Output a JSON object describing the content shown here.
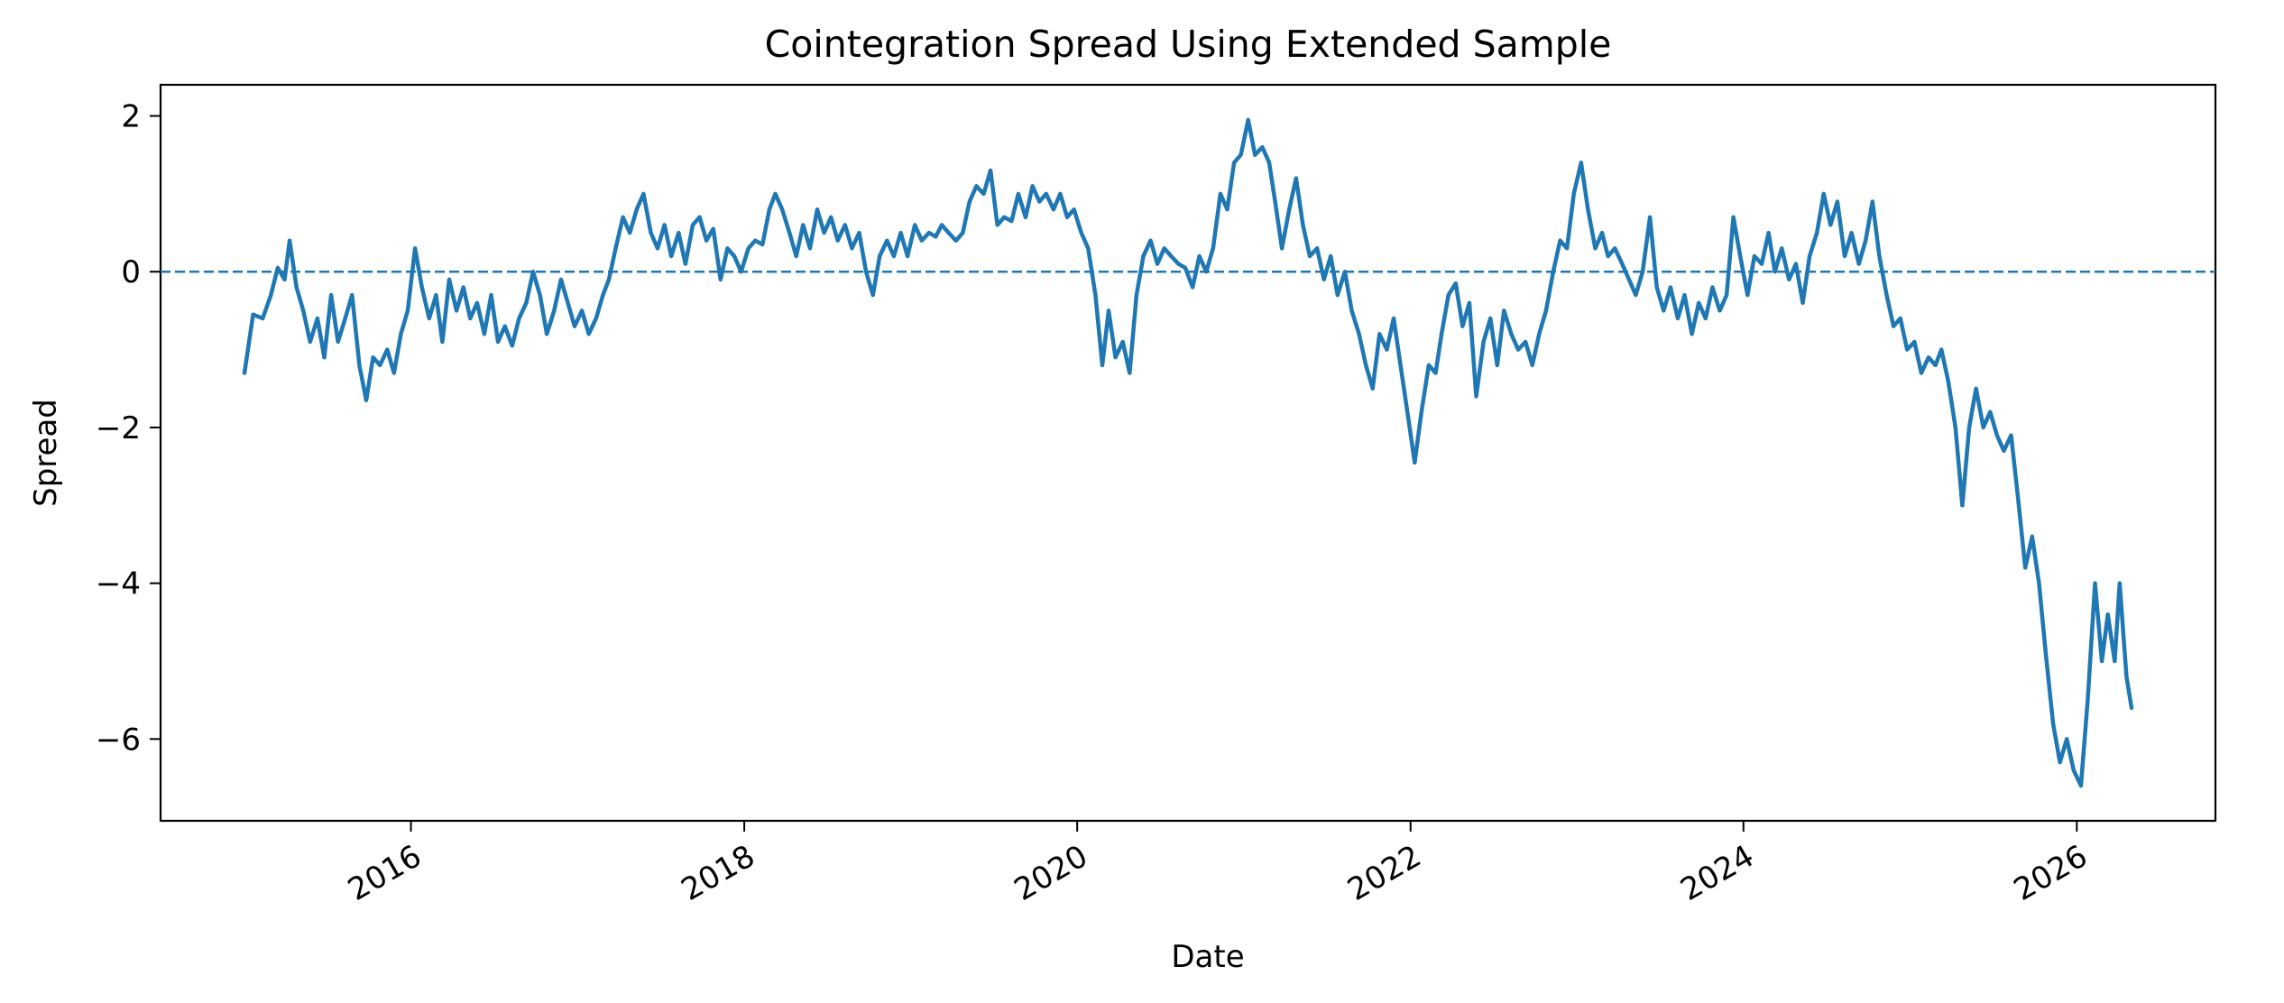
{
  "chart_data": {
    "type": "line",
    "title": "Cointegration Spread Using Extended Sample",
    "xlabel": "Date",
    "ylabel": "Spread",
    "xlim": [
      "2014-07-01",
      "2026-11-01"
    ],
    "ylim": [
      -7.05,
      2.4
    ],
    "xticks": [
      {
        "date": "2016-01-01",
        "label": "2016"
      },
      {
        "date": "2018-01-01",
        "label": "2018"
      },
      {
        "date": "2020-01-01",
        "label": "2020"
      },
      {
        "date": "2022-01-01",
        "label": "2022"
      },
      {
        "date": "2024-01-01",
        "label": "2024"
      },
      {
        "date": "2026-01-01",
        "label": "2026"
      }
    ],
    "yticks": [
      {
        "value": 2,
        "label": "2"
      },
      {
        "value": 0,
        "label": "0"
      },
      {
        "value": -2,
        "label": "−2"
      },
      {
        "value": -4,
        "label": "−4"
      },
      {
        "value": -6,
        "label": "−6"
      }
    ],
    "grid": false,
    "reference_line": {
      "y": 0,
      "style": "dashed",
      "color": "#1f77b4"
    },
    "series": [
      {
        "color": "#1f77b4",
        "points": [
          [
            "2015-01-01",
            -1.3
          ],
          [
            "2015-01-20",
            -0.55
          ],
          [
            "2015-02-10",
            -0.6
          ],
          [
            "2015-02-28",
            -0.3
          ],
          [
            "2015-03-15",
            0.05
          ],
          [
            "2015-03-30",
            -0.1
          ],
          [
            "2015-04-10",
            0.4
          ],
          [
            "2015-04-25",
            -0.2
          ],
          [
            "2015-05-10",
            -0.5
          ],
          [
            "2015-05-25",
            -0.9
          ],
          [
            "2015-06-10",
            -0.6
          ],
          [
            "2015-06-25",
            -1.1
          ],
          [
            "2015-07-10",
            -0.3
          ],
          [
            "2015-07-25",
            -0.9
          ],
          [
            "2015-08-10",
            -0.6
          ],
          [
            "2015-08-25",
            -0.3
          ],
          [
            "2015-09-10",
            -1.2
          ],
          [
            "2015-09-25",
            -1.65
          ],
          [
            "2015-10-10",
            -1.1
          ],
          [
            "2015-10-25",
            -1.2
          ],
          [
            "2015-11-10",
            -1.0
          ],
          [
            "2015-11-25",
            -1.3
          ],
          [
            "2015-12-10",
            -0.8
          ],
          [
            "2015-12-25",
            -0.5
          ],
          [
            "2016-01-10",
            0.3
          ],
          [
            "2016-01-25",
            -0.2
          ],
          [
            "2016-02-10",
            -0.6
          ],
          [
            "2016-02-25",
            -0.3
          ],
          [
            "2016-03-10",
            -0.9
          ],
          [
            "2016-03-25",
            -0.1
          ],
          [
            "2016-04-10",
            -0.5
          ],
          [
            "2016-04-25",
            -0.2
          ],
          [
            "2016-05-10",
            -0.6
          ],
          [
            "2016-05-25",
            -0.4
          ],
          [
            "2016-06-10",
            -0.8
          ],
          [
            "2016-06-25",
            -0.3
          ],
          [
            "2016-07-10",
            -0.9
          ],
          [
            "2016-07-25",
            -0.7
          ],
          [
            "2016-08-10",
            -0.95
          ],
          [
            "2016-08-25",
            -0.6
          ],
          [
            "2016-09-10",
            -0.4
          ],
          [
            "2016-09-25",
            0.0
          ],
          [
            "2016-10-10",
            -0.3
          ],
          [
            "2016-10-25",
            -0.8
          ],
          [
            "2016-11-10",
            -0.5
          ],
          [
            "2016-11-25",
            -0.1
          ],
          [
            "2016-12-10",
            -0.4
          ],
          [
            "2016-12-25",
            -0.7
          ],
          [
            "2017-01-10",
            -0.5
          ],
          [
            "2017-01-25",
            -0.8
          ],
          [
            "2017-02-10",
            -0.6
          ],
          [
            "2017-02-25",
            -0.3
          ],
          [
            "2017-03-10",
            -0.1
          ],
          [
            "2017-03-25",
            0.3
          ],
          [
            "2017-04-10",
            0.7
          ],
          [
            "2017-04-25",
            0.5
          ],
          [
            "2017-05-10",
            0.8
          ],
          [
            "2017-05-25",
            1.0
          ],
          [
            "2017-06-10",
            0.5
          ],
          [
            "2017-06-25",
            0.3
          ],
          [
            "2017-07-10",
            0.6
          ],
          [
            "2017-07-25",
            0.2
          ],
          [
            "2017-08-10",
            0.5
          ],
          [
            "2017-08-25",
            0.1
          ],
          [
            "2017-09-10",
            0.6
          ],
          [
            "2017-09-25",
            0.7
          ],
          [
            "2017-10-10",
            0.4
          ],
          [
            "2017-10-25",
            0.55
          ],
          [
            "2017-11-10",
            -0.1
          ],
          [
            "2017-11-25",
            0.3
          ],
          [
            "2017-12-10",
            0.2
          ],
          [
            "2017-12-25",
            0.0
          ],
          [
            "2018-01-10",
            0.3
          ],
          [
            "2018-01-25",
            0.4
          ],
          [
            "2018-02-10",
            0.35
          ],
          [
            "2018-02-25",
            0.8
          ],
          [
            "2018-03-10",
            1.0
          ],
          [
            "2018-03-25",
            0.8
          ],
          [
            "2018-04-10",
            0.5
          ],
          [
            "2018-04-25",
            0.2
          ],
          [
            "2018-05-10",
            0.6
          ],
          [
            "2018-05-25",
            0.3
          ],
          [
            "2018-06-10",
            0.8
          ],
          [
            "2018-06-25",
            0.5
          ],
          [
            "2018-07-10",
            0.7
          ],
          [
            "2018-07-25",
            0.4
          ],
          [
            "2018-08-10",
            0.6
          ],
          [
            "2018-08-25",
            0.3
          ],
          [
            "2018-09-10",
            0.5
          ],
          [
            "2018-09-25",
            0.0
          ],
          [
            "2018-10-10",
            -0.3
          ],
          [
            "2018-10-25",
            0.2
          ],
          [
            "2018-11-10",
            0.4
          ],
          [
            "2018-11-25",
            0.2
          ],
          [
            "2018-12-10",
            0.5
          ],
          [
            "2018-12-25",
            0.2
          ],
          [
            "2019-01-10",
            0.6
          ],
          [
            "2019-01-25",
            0.4
          ],
          [
            "2019-02-10",
            0.5
          ],
          [
            "2019-02-25",
            0.45
          ],
          [
            "2019-03-10",
            0.6
          ],
          [
            "2019-03-25",
            0.5
          ],
          [
            "2019-04-10",
            0.4
          ],
          [
            "2019-04-25",
            0.5
          ],
          [
            "2019-05-10",
            0.9
          ],
          [
            "2019-05-25",
            1.1
          ],
          [
            "2019-06-10",
            1.0
          ],
          [
            "2019-06-25",
            1.3
          ],
          [
            "2019-07-10",
            0.6
          ],
          [
            "2019-07-25",
            0.7
          ],
          [
            "2019-08-10",
            0.65
          ],
          [
            "2019-08-25",
            1.0
          ],
          [
            "2019-09-10",
            0.7
          ],
          [
            "2019-09-25",
            1.1
          ],
          [
            "2019-10-10",
            0.9
          ],
          [
            "2019-10-25",
            1.0
          ],
          [
            "2019-11-10",
            0.8
          ],
          [
            "2019-11-25",
            1.0
          ],
          [
            "2019-12-10",
            0.7
          ],
          [
            "2019-12-25",
            0.8
          ],
          [
            "2020-01-10",
            0.5
          ],
          [
            "2020-01-25",
            0.3
          ],
          [
            "2020-02-10",
            -0.3
          ],
          [
            "2020-02-25",
            -1.2
          ],
          [
            "2020-03-10",
            -0.5
          ],
          [
            "2020-03-25",
            -1.1
          ],
          [
            "2020-04-10",
            -0.9
          ],
          [
            "2020-04-25",
            -1.3
          ],
          [
            "2020-05-10",
            -0.3
          ],
          [
            "2020-05-25",
            0.2
          ],
          [
            "2020-06-10",
            0.4
          ],
          [
            "2020-06-25",
            0.1
          ],
          [
            "2020-07-10",
            0.3
          ],
          [
            "2020-07-25",
            0.2
          ],
          [
            "2020-08-10",
            0.1
          ],
          [
            "2020-08-25",
            0.05
          ],
          [
            "2020-09-10",
            -0.2
          ],
          [
            "2020-09-25",
            0.2
          ],
          [
            "2020-10-10",
            0.0
          ],
          [
            "2020-10-25",
            0.3
          ],
          [
            "2020-11-10",
            1.0
          ],
          [
            "2020-11-25",
            0.8
          ],
          [
            "2020-12-10",
            1.4
          ],
          [
            "2020-12-25",
            1.5
          ],
          [
            "2021-01-10",
            1.95
          ],
          [
            "2021-01-25",
            1.5
          ],
          [
            "2021-02-10",
            1.6
          ],
          [
            "2021-02-25",
            1.4
          ],
          [
            "2021-03-10",
            0.9
          ],
          [
            "2021-03-25",
            0.3
          ],
          [
            "2021-04-10",
            0.8
          ],
          [
            "2021-04-25",
            1.2
          ],
          [
            "2021-05-10",
            0.6
          ],
          [
            "2021-05-25",
            0.2
          ],
          [
            "2021-06-10",
            0.3
          ],
          [
            "2021-06-25",
            -0.1
          ],
          [
            "2021-07-10",
            0.2
          ],
          [
            "2021-07-25",
            -0.3
          ],
          [
            "2021-08-10",
            0.0
          ],
          [
            "2021-08-25",
            -0.5
          ],
          [
            "2021-09-10",
            -0.8
          ],
          [
            "2021-09-25",
            -1.2
          ],
          [
            "2021-10-10",
            -1.5
          ],
          [
            "2021-10-25",
            -0.8
          ],
          [
            "2021-11-10",
            -1.0
          ],
          [
            "2021-11-25",
            -0.6
          ],
          [
            "2021-12-10",
            -1.2
          ],
          [
            "2021-12-25",
            -1.8
          ],
          [
            "2022-01-10",
            -2.45
          ],
          [
            "2022-01-25",
            -1.8
          ],
          [
            "2022-02-10",
            -1.2
          ],
          [
            "2022-02-25",
            -1.3
          ],
          [
            "2022-03-10",
            -0.8
          ],
          [
            "2022-03-25",
            -0.3
          ],
          [
            "2022-04-10",
            -0.15
          ],
          [
            "2022-04-25",
            -0.7
          ],
          [
            "2022-05-10",
            -0.4
          ],
          [
            "2022-05-25",
            -1.6
          ],
          [
            "2022-06-10",
            -0.9
          ],
          [
            "2022-06-25",
            -0.6
          ],
          [
            "2022-07-10",
            -1.2
          ],
          [
            "2022-07-25",
            -0.5
          ],
          [
            "2022-08-10",
            -0.8
          ],
          [
            "2022-08-25",
            -1.0
          ],
          [
            "2022-09-10",
            -0.9
          ],
          [
            "2022-09-25",
            -1.2
          ],
          [
            "2022-10-10",
            -0.8
          ],
          [
            "2022-10-25",
            -0.5
          ],
          [
            "2022-11-10",
            0.0
          ],
          [
            "2022-11-25",
            0.4
          ],
          [
            "2022-12-10",
            0.3
          ],
          [
            "2022-12-25",
            1.0
          ],
          [
            "2023-01-10",
            1.4
          ],
          [
            "2023-01-25",
            0.8
          ],
          [
            "2023-02-10",
            0.3
          ],
          [
            "2023-02-25",
            0.5
          ],
          [
            "2023-03-10",
            0.2
          ],
          [
            "2023-03-25",
            0.3
          ],
          [
            "2023-04-10",
            0.1
          ],
          [
            "2023-04-25",
            -0.1
          ],
          [
            "2023-05-10",
            -0.3
          ],
          [
            "2023-05-25",
            0.0
          ],
          [
            "2023-06-10",
            0.7
          ],
          [
            "2023-06-25",
            -0.2
          ],
          [
            "2023-07-10",
            -0.5
          ],
          [
            "2023-07-25",
            -0.2
          ],
          [
            "2023-08-10",
            -0.6
          ],
          [
            "2023-08-25",
            -0.3
          ],
          [
            "2023-09-10",
            -0.8
          ],
          [
            "2023-09-25",
            -0.4
          ],
          [
            "2023-10-10",
            -0.6
          ],
          [
            "2023-10-25",
            -0.2
          ],
          [
            "2023-11-10",
            -0.5
          ],
          [
            "2023-11-25",
            -0.3
          ],
          [
            "2023-12-10",
            0.7
          ],
          [
            "2023-12-25",
            0.2
          ],
          [
            "2024-01-10",
            -0.3
          ],
          [
            "2024-01-25",
            0.2
          ],
          [
            "2024-02-10",
            0.1
          ],
          [
            "2024-02-25",
            0.5
          ],
          [
            "2024-03-10",
            0.0
          ],
          [
            "2024-03-25",
            0.3
          ],
          [
            "2024-04-10",
            -0.1
          ],
          [
            "2024-04-25",
            0.1
          ],
          [
            "2024-05-10",
            -0.4
          ],
          [
            "2024-05-25",
            0.2
          ],
          [
            "2024-06-10",
            0.5
          ],
          [
            "2024-06-25",
            1.0
          ],
          [
            "2024-07-10",
            0.6
          ],
          [
            "2024-07-25",
            0.9
          ],
          [
            "2024-08-10",
            0.2
          ],
          [
            "2024-08-25",
            0.5
          ],
          [
            "2024-09-10",
            0.1
          ],
          [
            "2024-09-25",
            0.4
          ],
          [
            "2024-10-10",
            0.9
          ],
          [
            "2024-10-25",
            0.2
          ],
          [
            "2024-11-10",
            -0.3
          ],
          [
            "2024-11-25",
            -0.7
          ],
          [
            "2024-12-10",
            -0.6
          ],
          [
            "2024-12-25",
            -1.0
          ],
          [
            "2025-01-10",
            -0.9
          ],
          [
            "2025-01-25",
            -1.3
          ],
          [
            "2025-02-10",
            -1.1
          ],
          [
            "2025-02-25",
            -1.2
          ],
          [
            "2025-03-10",
            -1.0
          ],
          [
            "2025-03-25",
            -1.4
          ],
          [
            "2025-04-10",
            -2.0
          ],
          [
            "2025-04-25",
            -3.0
          ],
          [
            "2025-05-10",
            -2.0
          ],
          [
            "2025-05-25",
            -1.5
          ],
          [
            "2025-06-10",
            -2.0
          ],
          [
            "2025-06-25",
            -1.8
          ],
          [
            "2025-07-10",
            -2.1
          ],
          [
            "2025-07-25",
            -2.3
          ],
          [
            "2025-08-10",
            -2.1
          ],
          [
            "2025-08-25",
            -2.9
          ],
          [
            "2025-09-10",
            -3.8
          ],
          [
            "2025-09-25",
            -3.4
          ],
          [
            "2025-10-10",
            -4.0
          ],
          [
            "2025-10-25",
            -4.9
          ],
          [
            "2025-11-10",
            -5.8
          ],
          [
            "2025-11-25",
            -6.3
          ],
          [
            "2025-12-10",
            -6.0
          ],
          [
            "2025-12-25",
            -6.4
          ],
          [
            "2026-01-10",
            -6.6
          ],
          [
            "2026-01-25",
            -5.5
          ],
          [
            "2026-02-10",
            -4.0
          ],
          [
            "2026-02-25",
            -5.0
          ],
          [
            "2026-03-10",
            -4.4
          ],
          [
            "2026-03-25",
            -5.0
          ],
          [
            "2026-04-05",
            -4.0
          ],
          [
            "2026-04-20",
            -5.2
          ],
          [
            "2026-05-01",
            -5.6
          ]
        ]
      }
    ]
  }
}
